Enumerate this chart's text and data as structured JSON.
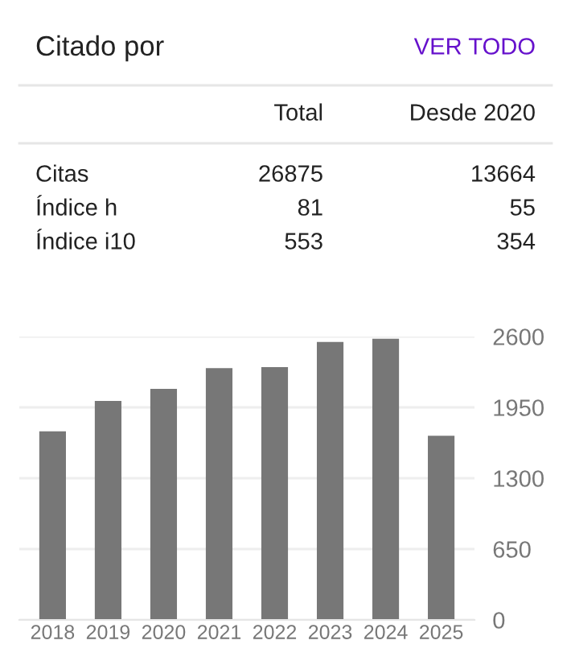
{
  "chart_data": [
    {
      "type": "other",
      "title": "Citado por",
      "annotations": [
        "VER TODO",
        "Total",
        "Desde 2020",
        "Citas",
        "26875",
        "13664",
        "Índice h",
        "81",
        "55",
        "Índice i10",
        "553",
        "354"
      ]
    },
    {
      "type": "bar",
      "categories": [
        "2018",
        "2019",
        "2020",
        "2021",
        "2022",
        "2023",
        "2024",
        "2025"
      ],
      "values": [
        1730,
        2010,
        2120,
        2310,
        2320,
        2550,
        2580,
        1690
      ],
      "color": "#777777",
      "ylim": [
        0,
        2600
      ],
      "yticks": [
        0,
        650,
        1300,
        1950,
        2600
      ],
      "grid": "y"
    }
  ]
}
